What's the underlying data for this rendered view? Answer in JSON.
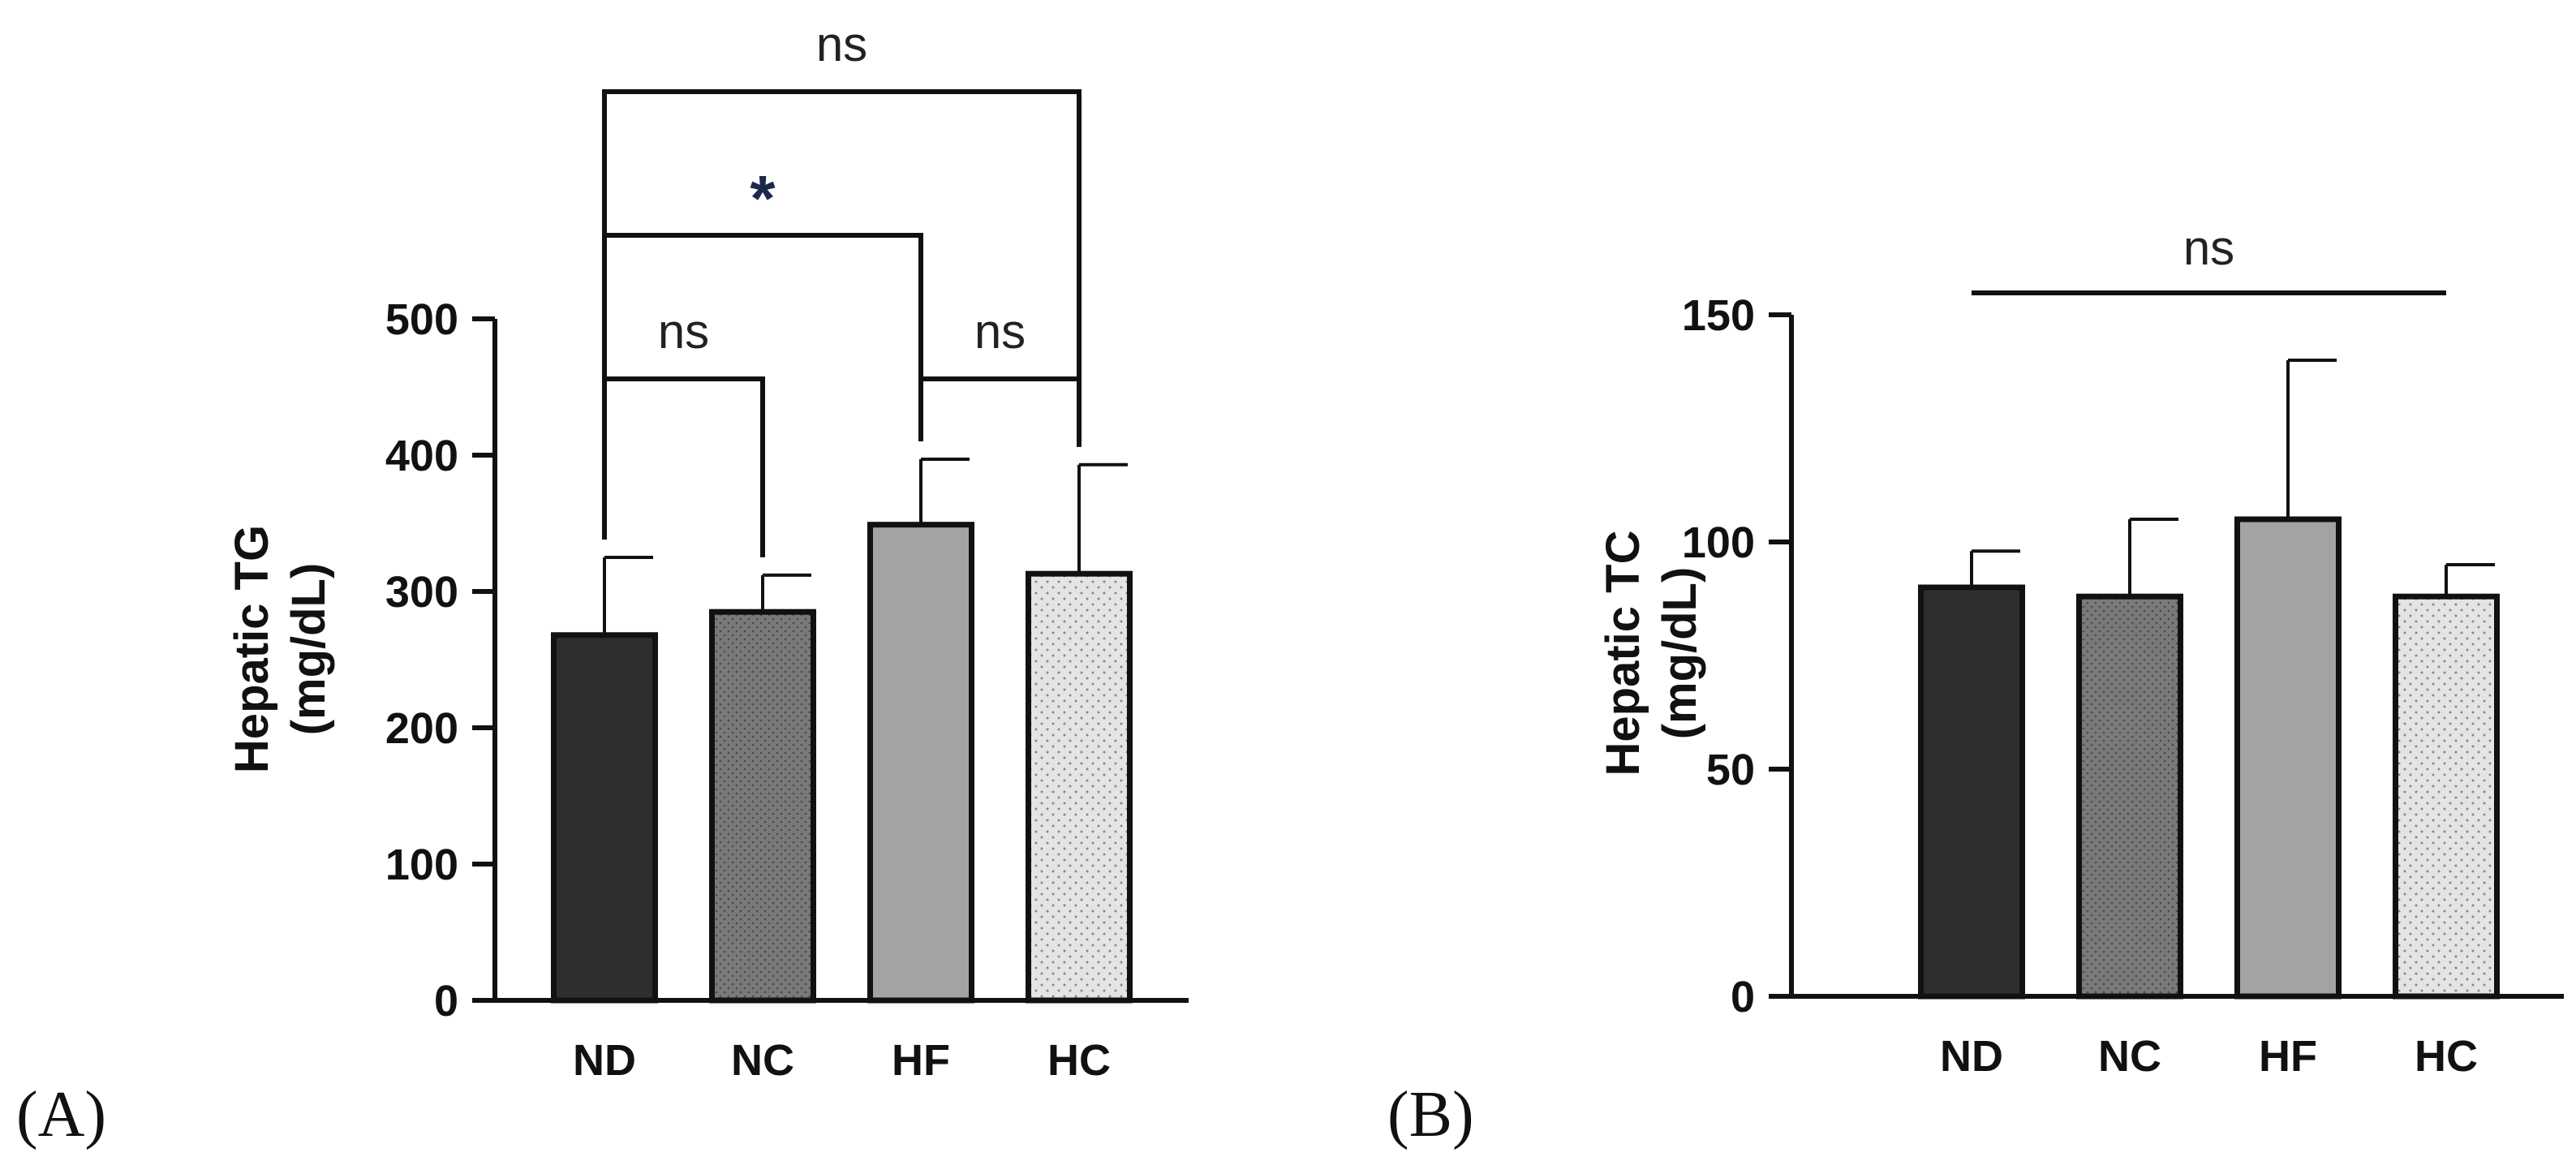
{
  "colors": {
    "ND": "#2e2e2e",
    "NC": "#7a7a7a",
    "HF": "#a3a3a3",
    "HC": "#e2e2e2",
    "outline": "#111111"
  },
  "chart_data": [
    {
      "panel": "(A)",
      "type": "bar",
      "ylabel": "Hepatic TG",
      "ylabel_units": "(mg/dL)",
      "categories": [
        "ND",
        "NC",
        "HF",
        "HC"
      ],
      "values": [
        268,
        285,
        349,
        313
      ],
      "errors": [
        57,
        27,
        48,
        80
      ],
      "ylim": [
        0,
        500
      ],
      "yticks": [
        0,
        100,
        200,
        300,
        400,
        500
      ],
      "ytick_labels": [
        "0",
        "100",
        "200",
        "300",
        "400",
        "500"
      ],
      "comparisons": [
        {
          "from": "ND",
          "to": "NC",
          "label": "ns"
        },
        {
          "from": "HF",
          "to": "HC",
          "label": "ns"
        },
        {
          "from": "ND",
          "to": "HF",
          "label": "*"
        },
        {
          "from": "ND",
          "to": "HC",
          "label": "ns"
        }
      ]
    },
    {
      "panel": "(B)",
      "type": "bar",
      "ylabel": "Hepatic TC",
      "ylabel_units": "(mg/dL)",
      "categories": [
        "ND",
        "NC",
        "HF",
        "HC"
      ],
      "values": [
        90,
        88,
        105,
        88
      ],
      "errors": [
        8,
        17,
        35,
        7
      ],
      "ylim": [
        0,
        150
      ],
      "yticks": [
        0,
        50,
        100,
        150
      ],
      "ytick_labels": [
        "0",
        "50",
        "100",
        "150"
      ],
      "comparisons": [
        {
          "from": "ND",
          "to": "HC",
          "label": "ns",
          "style": "line"
        }
      ]
    }
  ]
}
